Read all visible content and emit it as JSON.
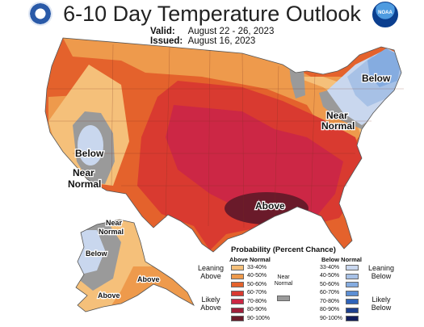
{
  "title": "6-10 Day Temperature Outlook",
  "valid_label": "Valid:",
  "valid_dates": "August 22 - 26, 2023",
  "issued_label": "Issued:",
  "issued_date": "August 16, 2023",
  "logos": {
    "left": "doc-seal-icon",
    "right": "noaa-logo-icon",
    "noaa_text": "NOAA"
  },
  "map_labels": {
    "northeast_below": "Below",
    "east_near_1": "Near",
    "east_near_2": "Normal",
    "west_below": "Below",
    "west_near_1": "Near",
    "west_near_2": "Normal",
    "south_above": "Above",
    "ak_near_1": "Near",
    "ak_near_2": "Normal",
    "ak_below": "Below",
    "ak_above_1": "Above",
    "ak_above_2": "Above"
  },
  "legend": {
    "title": "Probability (Percent Chance)",
    "above_header": "Above Normal",
    "below_header": "Below Normal",
    "near_normal_1": "Near",
    "near_normal_2": "Normal",
    "leaning_above_1": "Leaning",
    "leaning_above_2": "Above",
    "likely_above_1": "Likely",
    "likely_above_2": "Above",
    "leaning_below_1": "Leaning",
    "leaning_below_2": "Below",
    "likely_below_1": "Likely",
    "likely_below_2": "Below",
    "ranges": [
      "33-40%",
      "40-50%",
      "50-60%",
      "60-70%",
      "70-80%",
      "80-90%",
      "90-100%"
    ],
    "above_colors": [
      "#f5c07a",
      "#ee9a4c",
      "#e4622c",
      "#d93a30",
      "#cc2745",
      "#a01e3a",
      "#6a1a2a"
    ],
    "below_colors": [
      "#c9d7ee",
      "#a7c1e6",
      "#85ace0",
      "#5d8fd4",
      "#2f63b9",
      "#1d3f8e",
      "#111d5c"
    ],
    "near_color": "#9a9a9a"
  },
  "colors": {
    "lean_above": "#f5c07a",
    "above_40": "#ee9a4c",
    "above_50": "#e4622c",
    "above_60": "#d93a30",
    "above_70": "#cc2745",
    "above_90": "#6a1a2a",
    "near": "#9a9a9a",
    "below_33": "#c9d7ee",
    "below_40": "#a7c1e6",
    "below_50": "#85ace0"
  }
}
